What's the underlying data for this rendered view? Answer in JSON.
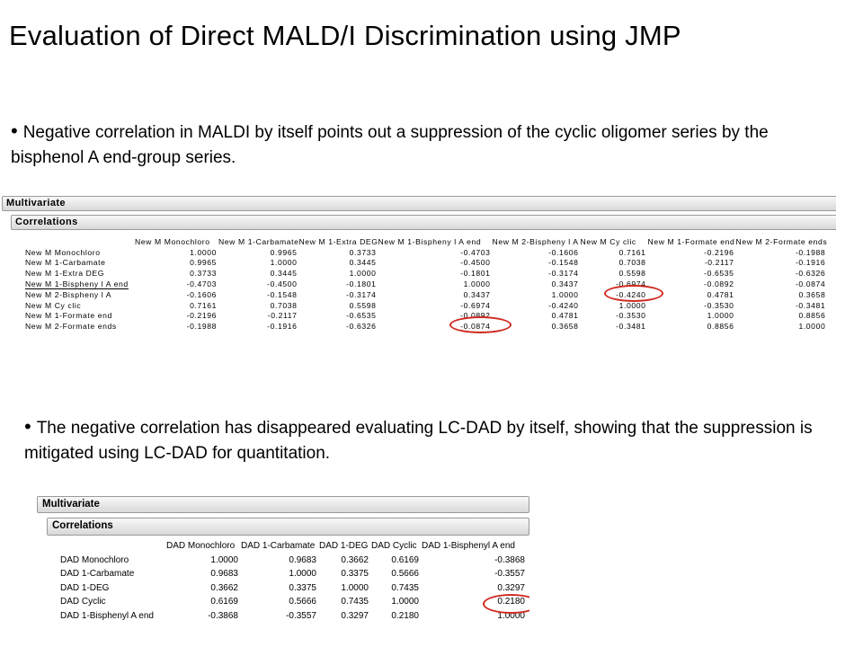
{
  "slide": {
    "title": "Evaluation of Direct MALD/I Discrimination using JMP",
    "bullets": [
      "Negative correlation in MALDI by itself points out a suppression of the cyclic oligomer series by the bisphenol A end-group series.",
      "The negative correlation has disappeared evaluating LC-DAD by itself, showing that the suppression is mitigated using LC-DAD for quantitation."
    ]
  },
  "colors": {
    "highlight": "#d02a20",
    "header_bar": "#e0e0e0"
  },
  "maldi_report": {
    "outer_title": "Multivariate",
    "inner_title": "Correlations",
    "columns": [
      "New M Monochloro",
      "New M 1-Carbamate",
      "New M 1-Extra DEG",
      "New M 1-Bispheny l A end",
      "New M 2-Bispheny l A",
      "New M Cy clic",
      "New M 1-Formate end",
      "New M 2-Formate ends"
    ],
    "rows": [
      {
        "label": "New M Monochloro",
        "values": [
          "1.0000",
          "0.9965",
          "0.3733",
          "-0.4703",
          "-0.1606",
          "0.7161",
          "-0.2196",
          "-0.1988"
        ]
      },
      {
        "label": "New M 1-Carbamate",
        "values": [
          "0.9965",
          "1.0000",
          "0.3445",
          "-0.4500",
          "-0.1548",
          "0.7038",
          "-0.2117",
          "-0.1916"
        ]
      },
      {
        "label": "New M 1-Extra DEG",
        "values": [
          "0.3733",
          "0.3445",
          "1.0000",
          "-0.1801",
          "-0.3174",
          "0.5598",
          "-0.6535",
          "-0.6326"
        ]
      },
      {
        "label": "New M 1-Bispheny l A end",
        "values": [
          "-0.4703",
          "-0.4500",
          "-0.1801",
          "1.0000",
          "0.3437",
          "-0.6974",
          "-0.0892",
          "-0.0874"
        ]
      },
      {
        "label": "New M 2-Bispheny l A",
        "values": [
          "-0.1606",
          "-0.1548",
          "-0.3174",
          "0.3437",
          "1.0000",
          "-0.4240",
          "0.4781",
          "0.3658"
        ]
      },
      {
        "label": "New M Cy clic",
        "values": [
          "0.7161",
          "0.7038",
          "0.5598",
          "-0.6974",
          "-0.4240",
          "1.0000",
          "-0.3530",
          "-0.3481"
        ]
      },
      {
        "label": "New M 1-Formate end",
        "values": [
          "-0.2196",
          "-0.2117",
          "-0.6535",
          "-0.0892",
          "0.4781",
          "-0.3530",
          "1.0000",
          "0.8856"
        ]
      },
      {
        "label": "New M 2-Formate ends",
        "values": [
          "-0.1988",
          "-0.1916",
          "-0.6326",
          "-0.0874",
          "0.3658",
          "-0.3481",
          "0.8856",
          "1.0000"
        ]
      }
    ]
  },
  "lcdad_report": {
    "outer_title": "Multivariate",
    "inner_title": "Correlations",
    "columns": [
      "DAD Monochloro",
      "DAD 1-Carbamate",
      "DAD 1-DEG",
      "DAD Cyclic",
      "DAD 1-Bisphenyl A end"
    ],
    "rows": [
      {
        "label": "DAD Monochloro",
        "values": [
          "1.0000",
          "0.9683",
          "0.3662",
          "0.6169",
          "-0.3868"
        ]
      },
      {
        "label": "DAD 1-Carbamate",
        "values": [
          "0.9683",
          "1.0000",
          "0.3375",
          "0.5666",
          "-0.3557"
        ]
      },
      {
        "label": "DAD 1-DEG",
        "values": [
          "0.3662",
          "0.3375",
          "1.0000",
          "0.7435",
          "0.3297"
        ]
      },
      {
        "label": "DAD Cyclic",
        "values": [
          "0.6169",
          "0.5666",
          "0.7435",
          "1.0000",
          "0.2180"
        ]
      },
      {
        "label": "DAD 1-Bisphenyl A end",
        "values": [
          "-0.3868",
          "-0.3557",
          "0.3297",
          "0.2180",
          "1.0000"
        ]
      }
    ]
  }
}
